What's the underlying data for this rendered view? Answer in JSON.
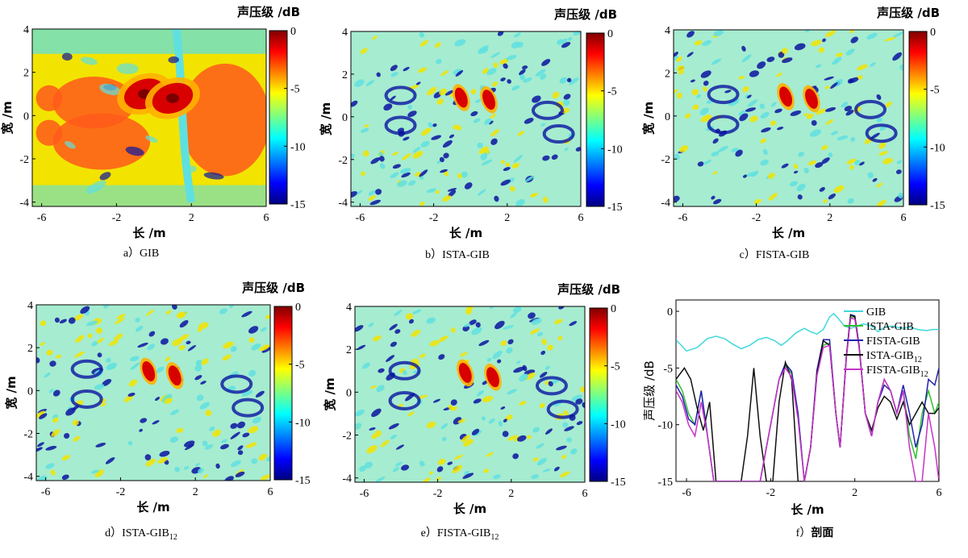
{
  "figure": {
    "colorbar_title": "声压级 /dB",
    "x_label": "长 /m",
    "y_label": "宽 /m",
    "colorbar_ticks": [
      "0",
      "-5",
      "-10",
      "-15"
    ],
    "x_ticks": [
      "-6",
      "-2",
      "2",
      "6"
    ],
    "y_ticks": [
      "4",
      "2",
      "0",
      "-2",
      "-4"
    ],
    "colors": {
      "hot": "#d80000",
      "warm": "#f2e400",
      "mid": "#5fe0e0",
      "cold": "#0a14a0",
      "deep": "#00005a"
    }
  },
  "panels": [
    {
      "key": "a",
      "caption_prefix": "a）",
      "caption_main": "GIB",
      "caption_sub": ""
    },
    {
      "key": "b",
      "caption_prefix": "b）",
      "caption_main": "ISTA-GIB",
      "caption_sub": ""
    },
    {
      "key": "c",
      "caption_prefix": "c）",
      "caption_main": "FISTA-GIB",
      "caption_sub": ""
    },
    {
      "key": "d",
      "caption_prefix": "d）",
      "caption_main": "ISTA-GIB",
      "caption_sub": "12"
    },
    {
      "key": "e",
      "caption_prefix": "e）",
      "caption_main": "FISTA-GIB",
      "caption_sub": "12"
    }
  ],
  "chart_data": [
    {
      "type": "heatmap",
      "title": "a） GIB",
      "xlabel": "长 /m",
      "ylabel": "宽 /m",
      "colorbar_label": "声压级 /dB",
      "xlim": [
        -6.5,
        6
      ],
      "ylim": [
        -4.2,
        4
      ],
      "clim": [
        -15,
        0
      ],
      "description_sources_dB": [
        {
          "x": -0.5,
          "y": 1.0,
          "level": -0.5
        },
        {
          "x": 1.0,
          "y": 0.8,
          "level": -0.5
        }
      ]
    },
    {
      "type": "heatmap",
      "title": "b） ISTA-GIB",
      "xlabel": "长 /m",
      "ylabel": "宽 /m",
      "colorbar_label": "声压级 /dB",
      "xlim": [
        -6.5,
        6
      ],
      "ylim": [
        -4.2,
        4
      ],
      "clim": [
        -15,
        0
      ],
      "description_sources_dB": [
        {
          "x": -0.5,
          "y": 0.9,
          "level": -1
        },
        {
          "x": 1.0,
          "y": 0.8,
          "level": 0
        }
      ]
    },
    {
      "type": "heatmap",
      "title": "c） FISTA-GIB",
      "xlabel": "长 /m",
      "ylabel": "宽 /m",
      "colorbar_label": "声压级 /dB",
      "xlim": [
        -6.5,
        6
      ],
      "ylim": [
        -4.2,
        4
      ],
      "clim": [
        -15,
        0
      ],
      "description_sources_dB": [
        {
          "x": -0.4,
          "y": 0.9,
          "level": -1
        },
        {
          "x": 1.0,
          "y": 0.8,
          "level": 0
        }
      ]
    },
    {
      "type": "heatmap",
      "title": "d） ISTA-GIB12",
      "xlabel": "长 /m",
      "ylabel": "宽 /m",
      "colorbar_label": "声压级 /dB",
      "xlim": [
        -6.5,
        6
      ],
      "ylim": [
        -4.2,
        4
      ],
      "clim": [
        -15,
        0
      ],
      "description_sources_dB": [
        {
          "x": -0.5,
          "y": 0.9,
          "level": -2
        },
        {
          "x": 0.9,
          "y": 0.7,
          "level": 0
        }
      ]
    },
    {
      "type": "heatmap",
      "title": "e） FISTA-GIB12",
      "xlabel": "长 /m",
      "ylabel": "宽 /m",
      "colorbar_label": "声压级 /dB",
      "xlim": [
        -6.5,
        6
      ],
      "ylim": [
        -4.2,
        4
      ],
      "clim": [
        -15,
        0
      ],
      "description_sources_dB": [
        {
          "x": -0.5,
          "y": 0.9,
          "level": -1
        },
        {
          "x": 1.0,
          "y": 0.7,
          "level": 0
        }
      ]
    },
    {
      "type": "line",
      "title": "f） 剖面",
      "caption_prefix": "f）",
      "caption_main": "剖面",
      "xlabel": "长 /m",
      "ylabel": "声压级 /dB",
      "xlim": [
        -6.5,
        6
      ],
      "ylim": [
        -15,
        1
      ],
      "x_ticks": [
        "-6",
        "-2",
        "2",
        "6"
      ],
      "y_ticks": [
        "0",
        "-5",
        "-10",
        "-15"
      ],
      "legend_position": "top-right",
      "series": [
        {
          "name": "GIB",
          "sub": "",
          "color": "#3fd8dc",
          "points": [
            [
              -6.5,
              -2.5
            ],
            [
              -6.0,
              -3.5
            ],
            [
              -5.5,
              -3.2
            ],
            [
              -5.0,
              -2.4
            ],
            [
              -4.6,
              -2.2
            ],
            [
              -4.2,
              -2.4
            ],
            [
              -3.8,
              -2.9
            ],
            [
              -3.4,
              -3.3
            ],
            [
              -3.0,
              -3.0
            ],
            [
              -2.6,
              -2.5
            ],
            [
              -2.2,
              -2.3
            ],
            [
              -1.8,
              -2.6
            ],
            [
              -1.5,
              -3.0
            ],
            [
              -1.2,
              -2.6
            ],
            [
              -0.8,
              -1.9
            ],
            [
              -0.4,
              -1.5
            ],
            [
              -0.1,
              -1.8
            ],
            [
              0.2,
              -2.0
            ],
            [
              0.5,
              -1.6
            ],
            [
              0.8,
              -0.5
            ],
            [
              1.0,
              -0.2
            ],
            [
              1.2,
              -0.6
            ],
            [
              1.5,
              -1.3
            ],
            [
              1.8,
              -1.5
            ],
            [
              2.1,
              -1.3
            ],
            [
              2.4,
              -1.1
            ],
            [
              2.8,
              -1.3
            ],
            [
              3.1,
              -1.8
            ],
            [
              3.4,
              -1.4
            ],
            [
              3.8,
              -1.3
            ],
            [
              4.2,
              -1.5
            ],
            [
              4.6,
              -1.4
            ],
            [
              5.0,
              -1.6
            ],
            [
              5.4,
              -1.7
            ],
            [
              5.7,
              -1.6
            ],
            [
              6.0,
              -1.6
            ]
          ]
        },
        {
          "name": "ISTA-GIB",
          "sub": "",
          "color": "#30c030",
          "points": [
            [
              -6.5,
              -6
            ],
            [
              -6.2,
              -7
            ],
            [
              -5.9,
              -9
            ],
            [
              -5.6,
              -10
            ],
            [
              -5.3,
              -7
            ],
            [
              -5.0,
              -11
            ],
            [
              -4.7,
              -15
            ],
            [
              -4.3,
              -15
            ],
            [
              -3.9,
              -15
            ],
            [
              -3.5,
              -15
            ],
            [
              -3.1,
              -15
            ],
            [
              -2.8,
              -15
            ],
            [
              -2.5,
              -15
            ],
            [
              -2.2,
              -12
            ],
            [
              -1.9,
              -9
            ],
            [
              -1.6,
              -6
            ],
            [
              -1.3,
              -4.8
            ],
            [
              -1.0,
              -5.5
            ],
            [
              -0.7,
              -9
            ],
            [
              -0.4,
              -15
            ],
            [
              -0.1,
              -12
            ],
            [
              0.2,
              -5.5
            ],
            [
              0.5,
              -3.0
            ],
            [
              0.8,
              -2.8
            ],
            [
              1.1,
              -9
            ],
            [
              1.3,
              -12
            ],
            [
              1.6,
              -4.0
            ],
            [
              1.8,
              -0.5
            ],
            [
              2.0,
              -0.5
            ],
            [
              2.2,
              -3
            ],
            [
              2.5,
              -9
            ],
            [
              2.8,
              -11
            ],
            [
              3.1,
              -8
            ],
            [
              3.4,
              -6
            ],
            [
              3.7,
              -7
            ],
            [
              4.0,
              -9
            ],
            [
              4.3,
              -7
            ],
            [
              4.6,
              -11
            ],
            [
              4.9,
              -13
            ],
            [
              5.2,
              -9
            ],
            [
              5.5,
              -7
            ],
            [
              5.8,
              -9
            ],
            [
              6.0,
              -8
            ]
          ]
        },
        {
          "name": "FISTA-GIB",
          "sub": "",
          "color": "#2020b0",
          "points": [
            [
              -6.5,
              -6.5
            ],
            [
              -6.2,
              -7.5
            ],
            [
              -5.9,
              -9.5
            ],
            [
              -5.6,
              -10
            ],
            [
              -5.3,
              -7
            ],
            [
              -5.0,
              -11
            ],
            [
              -4.7,
              -15
            ],
            [
              -4.3,
              -15
            ],
            [
              -3.9,
              -15
            ],
            [
              -3.5,
              -15
            ],
            [
              -3.1,
              -15
            ],
            [
              -2.8,
              -15
            ],
            [
              -2.5,
              -15
            ],
            [
              -2.2,
              -12
            ],
            [
              -1.9,
              -9
            ],
            [
              -1.6,
              -6
            ],
            [
              -1.3,
              -4.6
            ],
            [
              -1.0,
              -5.3
            ],
            [
              -0.7,
              -9
            ],
            [
              -0.4,
              -15
            ],
            [
              -0.1,
              -12
            ],
            [
              0.2,
              -5.2
            ],
            [
              0.5,
              -2.5
            ],
            [
              0.8,
              -2.5
            ],
            [
              1.1,
              -9
            ],
            [
              1.3,
              -12
            ],
            [
              1.6,
              -4.0
            ],
            [
              1.8,
              -0.3
            ],
            [
              2.0,
              -0.4
            ],
            [
              2.2,
              -3
            ],
            [
              2.5,
              -9
            ],
            [
              2.8,
              -11
            ],
            [
              3.1,
              -8
            ],
            [
              3.4,
              -6.5
            ],
            [
              3.7,
              -7
            ],
            [
              4.0,
              -9
            ],
            [
              4.3,
              -6.5
            ],
            [
              4.6,
              -9
            ],
            [
              4.9,
              -12
            ],
            [
              5.2,
              -10
            ],
            [
              5.5,
              -6
            ],
            [
              5.8,
              -6.5
            ],
            [
              6.0,
              -5
            ]
          ]
        },
        {
          "name": "ISTA-GIB",
          "sub": "12",
          "color": "#101010",
          "points": [
            [
              -6.5,
              -6
            ],
            [
              -6.1,
              -5.0
            ],
            [
              -5.8,
              -6
            ],
            [
              -5.5,
              -8.5
            ],
            [
              -5.2,
              -10.5
            ],
            [
              -4.9,
              -8
            ],
            [
              -4.6,
              -15
            ],
            [
              -4.3,
              -15
            ],
            [
              -4.0,
              -15
            ],
            [
              -3.7,
              -15
            ],
            [
              -3.4,
              -15
            ],
            [
              -3.1,
              -11
            ],
            [
              -2.8,
              -5.0
            ],
            [
              -2.5,
              -11
            ],
            [
              -2.2,
              -15
            ],
            [
              -1.9,
              -15
            ],
            [
              -1.6,
              -8
            ],
            [
              -1.3,
              -4.5
            ],
            [
              -1.0,
              -6
            ],
            [
              -0.7,
              -15
            ],
            [
              -0.4,
              -15
            ],
            [
              -0.1,
              -12
            ],
            [
              0.2,
              -5.5
            ],
            [
              0.5,
              -2.6
            ],
            [
              0.8,
              -3
            ],
            [
              1.1,
              -9
            ],
            [
              1.3,
              -12
            ],
            [
              1.6,
              -4
            ],
            [
              1.8,
              -0.3
            ],
            [
              2.0,
              -0.5
            ],
            [
              2.2,
              -3
            ],
            [
              2.5,
              -9
            ],
            [
              2.8,
              -10.5
            ],
            [
              3.1,
              -8.5
            ],
            [
              3.4,
              -7.5
            ],
            [
              3.7,
              -8
            ],
            [
              4.0,
              -9.5
            ],
            [
              4.3,
              -8
            ],
            [
              4.6,
              -10
            ],
            [
              4.9,
              -9
            ],
            [
              5.2,
              -8
            ],
            [
              5.5,
              -9
            ],
            [
              5.8,
              -9
            ],
            [
              6.0,
              -8.5
            ]
          ]
        },
        {
          "name": "FISTA-GIB",
          "sub": "12",
          "color": "#c832c8",
          "points": [
            [
              -6.5,
              -7
            ],
            [
              -6.2,
              -8
            ],
            [
              -5.9,
              -10
            ],
            [
              -5.6,
              -11
            ],
            [
              -5.3,
              -8
            ],
            [
              -5.0,
              -11
            ],
            [
              -4.7,
              -15
            ],
            [
              -4.3,
              -15
            ],
            [
              -3.9,
              -15
            ],
            [
              -3.5,
              -15
            ],
            [
              -3.1,
              -15
            ],
            [
              -2.8,
              -15
            ],
            [
              -2.5,
              -15
            ],
            [
              -2.2,
              -12
            ],
            [
              -1.9,
              -9
            ],
            [
              -1.6,
              -6
            ],
            [
              -1.3,
              -5.0
            ],
            [
              -1.0,
              -5.8
            ],
            [
              -0.7,
              -9.5
            ],
            [
              -0.4,
              -15
            ],
            [
              -0.1,
              -12
            ],
            [
              0.2,
              -5.7
            ],
            [
              0.5,
              -3.2
            ],
            [
              0.8,
              -3
            ],
            [
              1.1,
              -9
            ],
            [
              1.3,
              -12
            ],
            [
              1.6,
              -4.2
            ],
            [
              1.8,
              -0.6
            ],
            [
              2.0,
              -0.7
            ],
            [
              2.2,
              -3.2
            ],
            [
              2.5,
              -9
            ],
            [
              2.8,
              -11
            ],
            [
              3.1,
              -8
            ],
            [
              3.4,
              -6
            ],
            [
              3.7,
              -7
            ],
            [
              4.0,
              -9
            ],
            [
              4.3,
              -7
            ],
            [
              4.6,
              -12
            ],
            [
              4.9,
              -15
            ],
            [
              5.2,
              -15
            ],
            [
              5.5,
              -9
            ],
            [
              5.8,
              -12
            ],
            [
              6.0,
              -15
            ]
          ]
        }
      ]
    }
  ]
}
